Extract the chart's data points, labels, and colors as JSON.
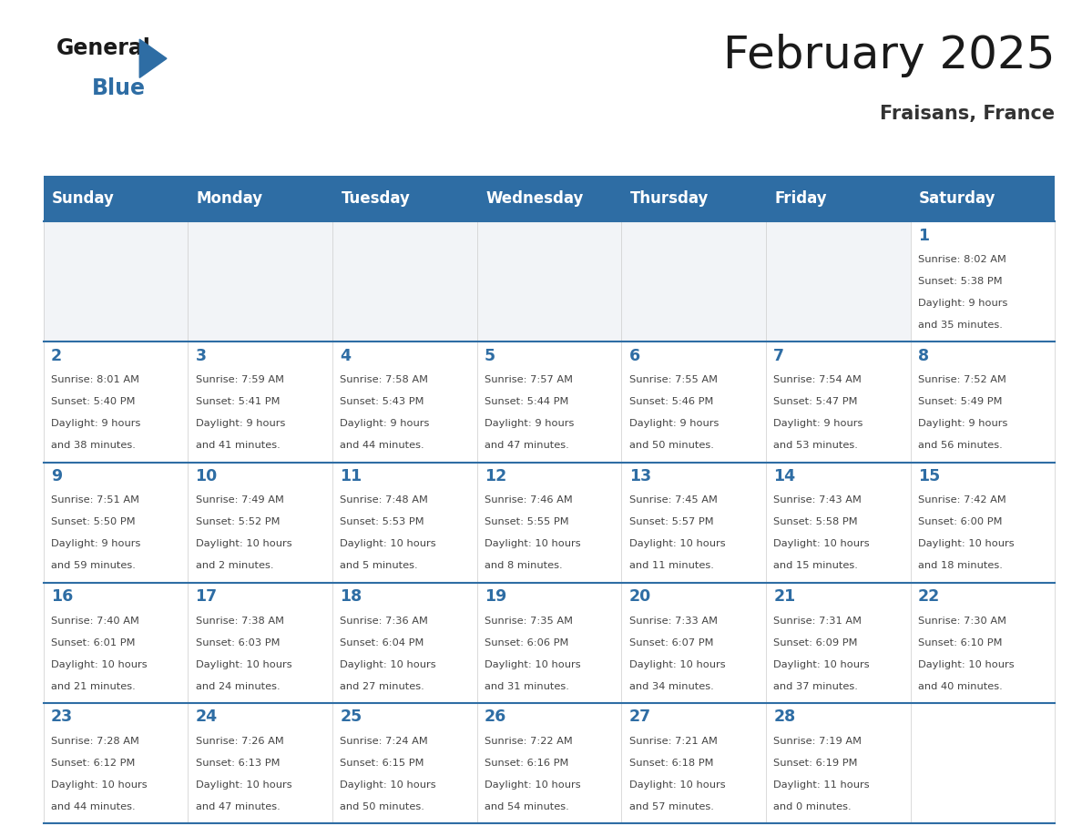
{
  "title": "February 2025",
  "subtitle": "Fraisans, France",
  "days_of_week": [
    "Sunday",
    "Monday",
    "Tuesday",
    "Wednesday",
    "Thursday",
    "Friday",
    "Saturday"
  ],
  "header_bg": "#2e6da4",
  "header_text": "#ffffff",
  "day_num_color": "#2e6da4",
  "text_color": "#333333",
  "line_color": "#2e6da4",
  "calendar_data": [
    [
      null,
      null,
      null,
      null,
      null,
      null,
      {
        "day": 1,
        "sunrise": "8:02 AM",
        "sunset": "5:38 PM",
        "daylight": "9 hours and 35 minutes."
      }
    ],
    [
      {
        "day": 2,
        "sunrise": "8:01 AM",
        "sunset": "5:40 PM",
        "daylight": "9 hours and 38 minutes."
      },
      {
        "day": 3,
        "sunrise": "7:59 AM",
        "sunset": "5:41 PM",
        "daylight": "9 hours and 41 minutes."
      },
      {
        "day": 4,
        "sunrise": "7:58 AM",
        "sunset": "5:43 PM",
        "daylight": "9 hours and 44 minutes."
      },
      {
        "day": 5,
        "sunrise": "7:57 AM",
        "sunset": "5:44 PM",
        "daylight": "9 hours and 47 minutes."
      },
      {
        "day": 6,
        "sunrise": "7:55 AM",
        "sunset": "5:46 PM",
        "daylight": "9 hours and 50 minutes."
      },
      {
        "day": 7,
        "sunrise": "7:54 AM",
        "sunset": "5:47 PM",
        "daylight": "9 hours and 53 minutes."
      },
      {
        "day": 8,
        "sunrise": "7:52 AM",
        "sunset": "5:49 PM",
        "daylight": "9 hours and 56 minutes."
      }
    ],
    [
      {
        "day": 9,
        "sunrise": "7:51 AM",
        "sunset": "5:50 PM",
        "daylight": "9 hours and 59 minutes."
      },
      {
        "day": 10,
        "sunrise": "7:49 AM",
        "sunset": "5:52 PM",
        "daylight": "10 hours and 2 minutes."
      },
      {
        "day": 11,
        "sunrise": "7:48 AM",
        "sunset": "5:53 PM",
        "daylight": "10 hours and 5 minutes."
      },
      {
        "day": 12,
        "sunrise": "7:46 AM",
        "sunset": "5:55 PM",
        "daylight": "10 hours and 8 minutes."
      },
      {
        "day": 13,
        "sunrise": "7:45 AM",
        "sunset": "5:57 PM",
        "daylight": "10 hours and 11 minutes."
      },
      {
        "day": 14,
        "sunrise": "7:43 AM",
        "sunset": "5:58 PM",
        "daylight": "10 hours and 15 minutes."
      },
      {
        "day": 15,
        "sunrise": "7:42 AM",
        "sunset": "6:00 PM",
        "daylight": "10 hours and 18 minutes."
      }
    ],
    [
      {
        "day": 16,
        "sunrise": "7:40 AM",
        "sunset": "6:01 PM",
        "daylight": "10 hours and 21 minutes."
      },
      {
        "day": 17,
        "sunrise": "7:38 AM",
        "sunset": "6:03 PM",
        "daylight": "10 hours and 24 minutes."
      },
      {
        "day": 18,
        "sunrise": "7:36 AM",
        "sunset": "6:04 PM",
        "daylight": "10 hours and 27 minutes."
      },
      {
        "day": 19,
        "sunrise": "7:35 AM",
        "sunset": "6:06 PM",
        "daylight": "10 hours and 31 minutes."
      },
      {
        "day": 20,
        "sunrise": "7:33 AM",
        "sunset": "6:07 PM",
        "daylight": "10 hours and 34 minutes."
      },
      {
        "day": 21,
        "sunrise": "7:31 AM",
        "sunset": "6:09 PM",
        "daylight": "10 hours and 37 minutes."
      },
      {
        "day": 22,
        "sunrise": "7:30 AM",
        "sunset": "6:10 PM",
        "daylight": "10 hours and 40 minutes."
      }
    ],
    [
      {
        "day": 23,
        "sunrise": "7:28 AM",
        "sunset": "6:12 PM",
        "daylight": "10 hours and 44 minutes."
      },
      {
        "day": 24,
        "sunrise": "7:26 AM",
        "sunset": "6:13 PM",
        "daylight": "10 hours and 47 minutes."
      },
      {
        "day": 25,
        "sunrise": "7:24 AM",
        "sunset": "6:15 PM",
        "daylight": "10 hours and 50 minutes."
      },
      {
        "day": 26,
        "sunrise": "7:22 AM",
        "sunset": "6:16 PM",
        "daylight": "10 hours and 54 minutes."
      },
      {
        "day": 27,
        "sunrise": "7:21 AM",
        "sunset": "6:18 PM",
        "daylight": "10 hours and 57 minutes."
      },
      {
        "day": 28,
        "sunrise": "7:19 AM",
        "sunset": "6:19 PM",
        "daylight": "11 hours and 0 minutes."
      },
      null
    ]
  ]
}
